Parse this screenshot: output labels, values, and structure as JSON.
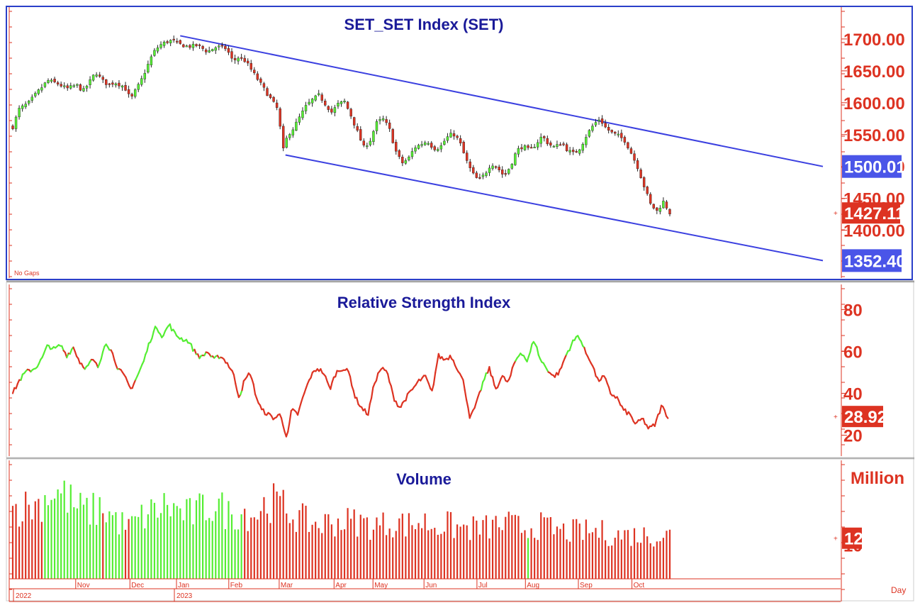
{
  "chart_data": [
    {
      "type": "candlestick",
      "title": "SET_SET Index (SET)",
      "note": "No Gaps",
      "ylim": [
        1325,
        1750
      ],
      "yticks": [
        "1700.00",
        "1650.00",
        "1600.00",
        "1550.00",
        "1500.00",
        "1450.00",
        "1400.00"
      ],
      "ytick_values": [
        1700,
        1650,
        1600,
        1550,
        1500,
        1450,
        1400
      ],
      "last_value_label": "1427.11",
      "last_value": 1427.11,
      "channel": {
        "upper_label": "1500.01",
        "lower_label": "1352.40",
        "upper": {
          "start": [
            0.2625,
            1705
          ],
          "end": [
            1.27,
            1500.01
          ]
        },
        "lower": {
          "start": [
            0.4275,
            1518
          ],
          "end": [
            1.27,
            1352.4
          ]
        }
      },
      "close_path": [
        [
          0.0,
          1562
        ],
        [
          0.01,
          1590
        ],
        [
          0.025,
          1600
        ],
        [
          0.04,
          1618
        ],
        [
          0.055,
          1635
        ],
        [
          0.07,
          1630
        ],
        [
          0.085,
          1622
        ],
        [
          0.1,
          1628
        ],
        [
          0.11,
          1618
        ],
        [
          0.12,
          1632
        ],
        [
          0.13,
          1648
        ],
        [
          0.14,
          1635
        ],
        [
          0.15,
          1628
        ],
        [
          0.16,
          1632
        ],
        [
          0.175,
          1625
        ],
        [
          0.185,
          1605
        ],
        [
          0.19,
          1615
        ],
        [
          0.2,
          1632
        ],
        [
          0.21,
          1655
        ],
        [
          0.22,
          1678
        ],
        [
          0.23,
          1690
        ],
        [
          0.24,
          1695
        ],
        [
          0.25,
          1698
        ],
        [
          0.26,
          1692
        ],
        [
          0.275,
          1688
        ],
        [
          0.29,
          1690
        ],
        [
          0.305,
          1680
        ],
        [
          0.32,
          1688
        ],
        [
          0.335,
          1685
        ],
        [
          0.345,
          1665
        ],
        [
          0.355,
          1672
        ],
        [
          0.365,
          1665
        ],
        [
          0.375,
          1650
        ],
        [
          0.385,
          1635
        ],
        [
          0.395,
          1620
        ],
        [
          0.405,
          1605
        ],
        [
          0.415,
          1590
        ],
        [
          0.425,
          1520
        ],
        [
          0.43,
          1548
        ],
        [
          0.44,
          1560
        ],
        [
          0.45,
          1578
        ],
        [
          0.46,
          1595
        ],
        [
          0.47,
          1605
        ],
        [
          0.48,
          1612
        ],
        [
          0.49,
          1598
        ],
        [
          0.5,
          1585
        ],
        [
          0.51,
          1598
        ],
        [
          0.52,
          1602
        ],
        [
          0.53,
          1580
        ],
        [
          0.54,
          1555
        ],
        [
          0.55,
          1530
        ],
        [
          0.56,
          1540
        ],
        [
          0.57,
          1568
        ],
        [
          0.58,
          1575
        ],
        [
          0.59,
          1560
        ],
        [
          0.6,
          1525
        ],
        [
          0.61,
          1505
        ],
        [
          0.62,
          1512
        ],
        [
          0.63,
          1530
        ],
        [
          0.64,
          1535
        ],
        [
          0.65,
          1540
        ],
        [
          0.66,
          1528
        ],
        [
          0.67,
          1530
        ],
        [
          0.68,
          1545
        ],
        [
          0.69,
          1552
        ],
        [
          0.7,
          1540
        ],
        [
          0.71,
          1512
        ],
        [
          0.72,
          1490
        ],
        [
          0.73,
          1478
        ],
        [
          0.74,
          1488
        ],
        [
          0.75,
          1505
        ],
        [
          0.76,
          1498
        ],
        [
          0.77,
          1485
        ],
        [
          0.78,
          1500
        ],
        [
          0.79,
          1525
        ],
        [
          0.8,
          1532
        ],
        [
          0.81,
          1525
        ],
        [
          0.82,
          1535
        ],
        [
          0.83,
          1548
        ],
        [
          0.84,
          1535
        ],
        [
          0.85,
          1530
        ],
        [
          0.86,
          1538
        ],
        [
          0.87,
          1525
        ],
        [
          0.88,
          1520
        ],
        [
          0.89,
          1530
        ],
        [
          0.9,
          1550
        ],
        [
          0.91,
          1565
        ],
        [
          0.92,
          1575
        ],
        [
          0.93,
          1560
        ],
        [
          0.94,
          1552
        ],
        [
          0.95,
          1548
        ],
        [
          0.96,
          1540
        ],
        [
          0.97,
          1520
        ],
        [
          0.98,
          1498
        ],
        [
          0.99,
          1468
        ],
        [
          1.0,
          1440
        ],
        [
          1.01,
          1430
        ],
        [
          1.02,
          1445
        ],
        [
          1.03,
          1427.11
        ]
      ]
    },
    {
      "type": "line",
      "title": "Relative Strength Index",
      "ylim": [
        10,
        92
      ],
      "yticks": [
        "80",
        "60",
        "40",
        "20"
      ],
      "ytick_values": [
        80,
        60,
        40,
        20
      ],
      "last_value_label": "28.92",
      "last_value": 28.92,
      "series": [
        {
          "color_rising": "#55ee33",
          "color_falling": "#dd3322",
          "points": [
            [
              0.0,
              40
            ],
            [
              0.01,
              46
            ],
            [
              0.02,
              50
            ],
            [
              0.035,
              52
            ],
            [
              0.045,
              56
            ],
            [
              0.055,
              63
            ],
            [
              0.065,
              61
            ],
            [
              0.075,
              63
            ],
            [
              0.085,
              58
            ],
            [
              0.095,
              62
            ],
            [
              0.105,
              55
            ],
            [
              0.115,
              52
            ],
            [
              0.125,
              56
            ],
            [
              0.135,
              52
            ],
            [
              0.145,
              65
            ],
            [
              0.155,
              60
            ],
            [
              0.165,
              52
            ],
            [
              0.175,
              48
            ],
            [
              0.185,
              42
            ],
            [
              0.195,
              48
            ],
            [
              0.205,
              55
            ],
            [
              0.215,
              65
            ],
            [
              0.225,
              72
            ],
            [
              0.235,
              67
            ],
            [
              0.245,
              73
            ],
            [
              0.255,
              68
            ],
            [
              0.265,
              66
            ],
            [
              0.275,
              65
            ],
            [
              0.285,
              60
            ],
            [
              0.295,
              57
            ],
            [
              0.305,
              60
            ],
            [
              0.315,
              56
            ],
            [
              0.325,
              58
            ],
            [
              0.335,
              55
            ],
            [
              0.345,
              50
            ],
            [
              0.355,
              38
            ],
            [
              0.362,
              45
            ],
            [
              0.372,
              50
            ],
            [
              0.382,
              38
            ],
            [
              0.39,
              32
            ],
            [
              0.4,
              30
            ],
            [
              0.41,
              28
            ],
            [
              0.42,
              30
            ],
            [
              0.43,
              18
            ],
            [
              0.437,
              32
            ],
            [
              0.447,
              30
            ],
            [
              0.457,
              40
            ],
            [
              0.467,
              48
            ],
            [
              0.477,
              52
            ],
            [
              0.487,
              50
            ],
            [
              0.497,
              42
            ],
            [
              0.507,
              50
            ],
            [
              0.517,
              52
            ],
            [
              0.527,
              50
            ],
            [
              0.537,
              38
            ],
            [
              0.547,
              33
            ],
            [
              0.557,
              30
            ],
            [
              0.567,
              45
            ],
            [
              0.577,
              52
            ],
            [
              0.587,
              50
            ],
            [
              0.597,
              38
            ],
            [
              0.607,
              33
            ],
            [
              0.617,
              38
            ],
            [
              0.627,
              42
            ],
            [
              0.637,
              46
            ],
            [
              0.647,
              48
            ],
            [
              0.657,
              40
            ],
            [
              0.667,
              58
            ],
            [
              0.677,
              56
            ],
            [
              0.687,
              58
            ],
            [
              0.697,
              52
            ],
            [
              0.707,
              45
            ],
            [
              0.717,
              28
            ],
            [
              0.727,
              35
            ],
            [
              0.737,
              45
            ],
            [
              0.747,
              52
            ],
            [
              0.757,
              42
            ],
            [
              0.767,
              48
            ],
            [
              0.777,
              45
            ],
            [
              0.787,
              55
            ],
            [
              0.797,
              60
            ],
            [
              0.807,
              55
            ],
            [
              0.817,
              66
            ],
            [
              0.827,
              56
            ],
            [
              0.837,
              52
            ],
            [
              0.847,
              48
            ],
            [
              0.857,
              50
            ],
            [
              0.867,
              58
            ],
            [
              0.877,
              64
            ],
            [
              0.887,
              68
            ],
            [
              0.897,
              60
            ],
            [
              0.907,
              55
            ],
            [
              0.917,
              46
            ],
            [
              0.927,
              48
            ],
            [
              0.937,
              40
            ],
            [
              0.947,
              38
            ],
            [
              0.957,
              32
            ],
            [
              0.967,
              30
            ],
            [
              0.977,
              25
            ],
            [
              0.987,
              28
            ],
            [
              0.997,
              23
            ],
            [
              1.007,
              25
            ],
            [
              1.017,
              34
            ],
            [
              1.027,
              28.92
            ]
          ]
        }
      ]
    },
    {
      "type": "bar",
      "title": "Volume",
      "unit_label": "Million",
      "last_value_label": "12",
      "ylim": [
        0,
        35
      ],
      "ytick_values": [
        10
      ],
      "yticks": [
        "10"
      ],
      "x_axis_label": "Day",
      "month_labels": [
        "Nov",
        "Dec",
        "Jan",
        "Feb",
        "Mar",
        "Apr",
        "May",
        "Jun",
        "Jul",
        "Aug",
        "Sep",
        "Oct"
      ],
      "month_positions": [
        0.052,
        0.137,
        0.21,
        0.292,
        0.371,
        0.457,
        0.518,
        0.598,
        0.681,
        0.757,
        0.84,
        0.924
      ],
      "year_labels": [
        "2022",
        "2023"
      ],
      "year_positions": [
        0.0,
        0.21
      ],
      "colors": {
        "up": "#55ee33",
        "down": "#dd3322"
      },
      "volume_profile": [
        [
          0.0,
          21
        ],
        [
          0.04,
          22
        ],
        [
          0.06,
          26
        ],
        [
          0.08,
          25
        ],
        [
          0.1,
          21
        ],
        [
          0.12,
          20
        ],
        [
          0.14,
          21
        ],
        [
          0.16,
          18
        ],
        [
          0.18,
          15
        ],
        [
          0.2,
          18
        ],
        [
          0.22,
          20
        ],
        [
          0.24,
          22
        ],
        [
          0.26,
          20
        ],
        [
          0.28,
          19
        ],
        [
          0.3,
          21
        ],
        [
          0.32,
          22
        ],
        [
          0.34,
          19
        ],
        [
          0.36,
          20
        ],
        [
          0.38,
          19
        ],
        [
          0.4,
          23
        ],
        [
          0.42,
          22
        ],
        [
          0.44,
          19
        ],
        [
          0.46,
          17
        ],
        [
          0.48,
          16
        ],
        [
          0.5,
          17
        ],
        [
          0.52,
          17
        ],
        [
          0.54,
          17
        ],
        [
          0.56,
          16
        ],
        [
          0.58,
          16
        ],
        [
          0.6,
          17
        ],
        [
          0.62,
          16
        ],
        [
          0.64,
          17
        ],
        [
          0.66,
          16
        ],
        [
          0.68,
          16
        ],
        [
          0.7,
          15
        ],
        [
          0.72,
          15
        ],
        [
          0.74,
          15
        ],
        [
          0.76,
          16
        ],
        [
          0.78,
          16
        ],
        [
          0.8,
          15
        ],
        [
          0.82,
          16
        ],
        [
          0.84,
          15
        ],
        [
          0.86,
          14
        ],
        [
          0.88,
          14
        ],
        [
          0.9,
          14
        ],
        [
          0.92,
          14
        ],
        [
          0.94,
          13
        ],
        [
          0.96,
          13
        ],
        [
          0.98,
          13
        ],
        [
          1.0,
          13
        ],
        [
          1.03,
          13
        ]
      ],
      "green_ranges": [
        [
          0.05,
          0.137
        ],
        [
          0.142,
          0.175
        ],
        [
          0.185,
          0.36
        ],
        [
          0.805,
          0.812
        ]
      ]
    }
  ]
}
